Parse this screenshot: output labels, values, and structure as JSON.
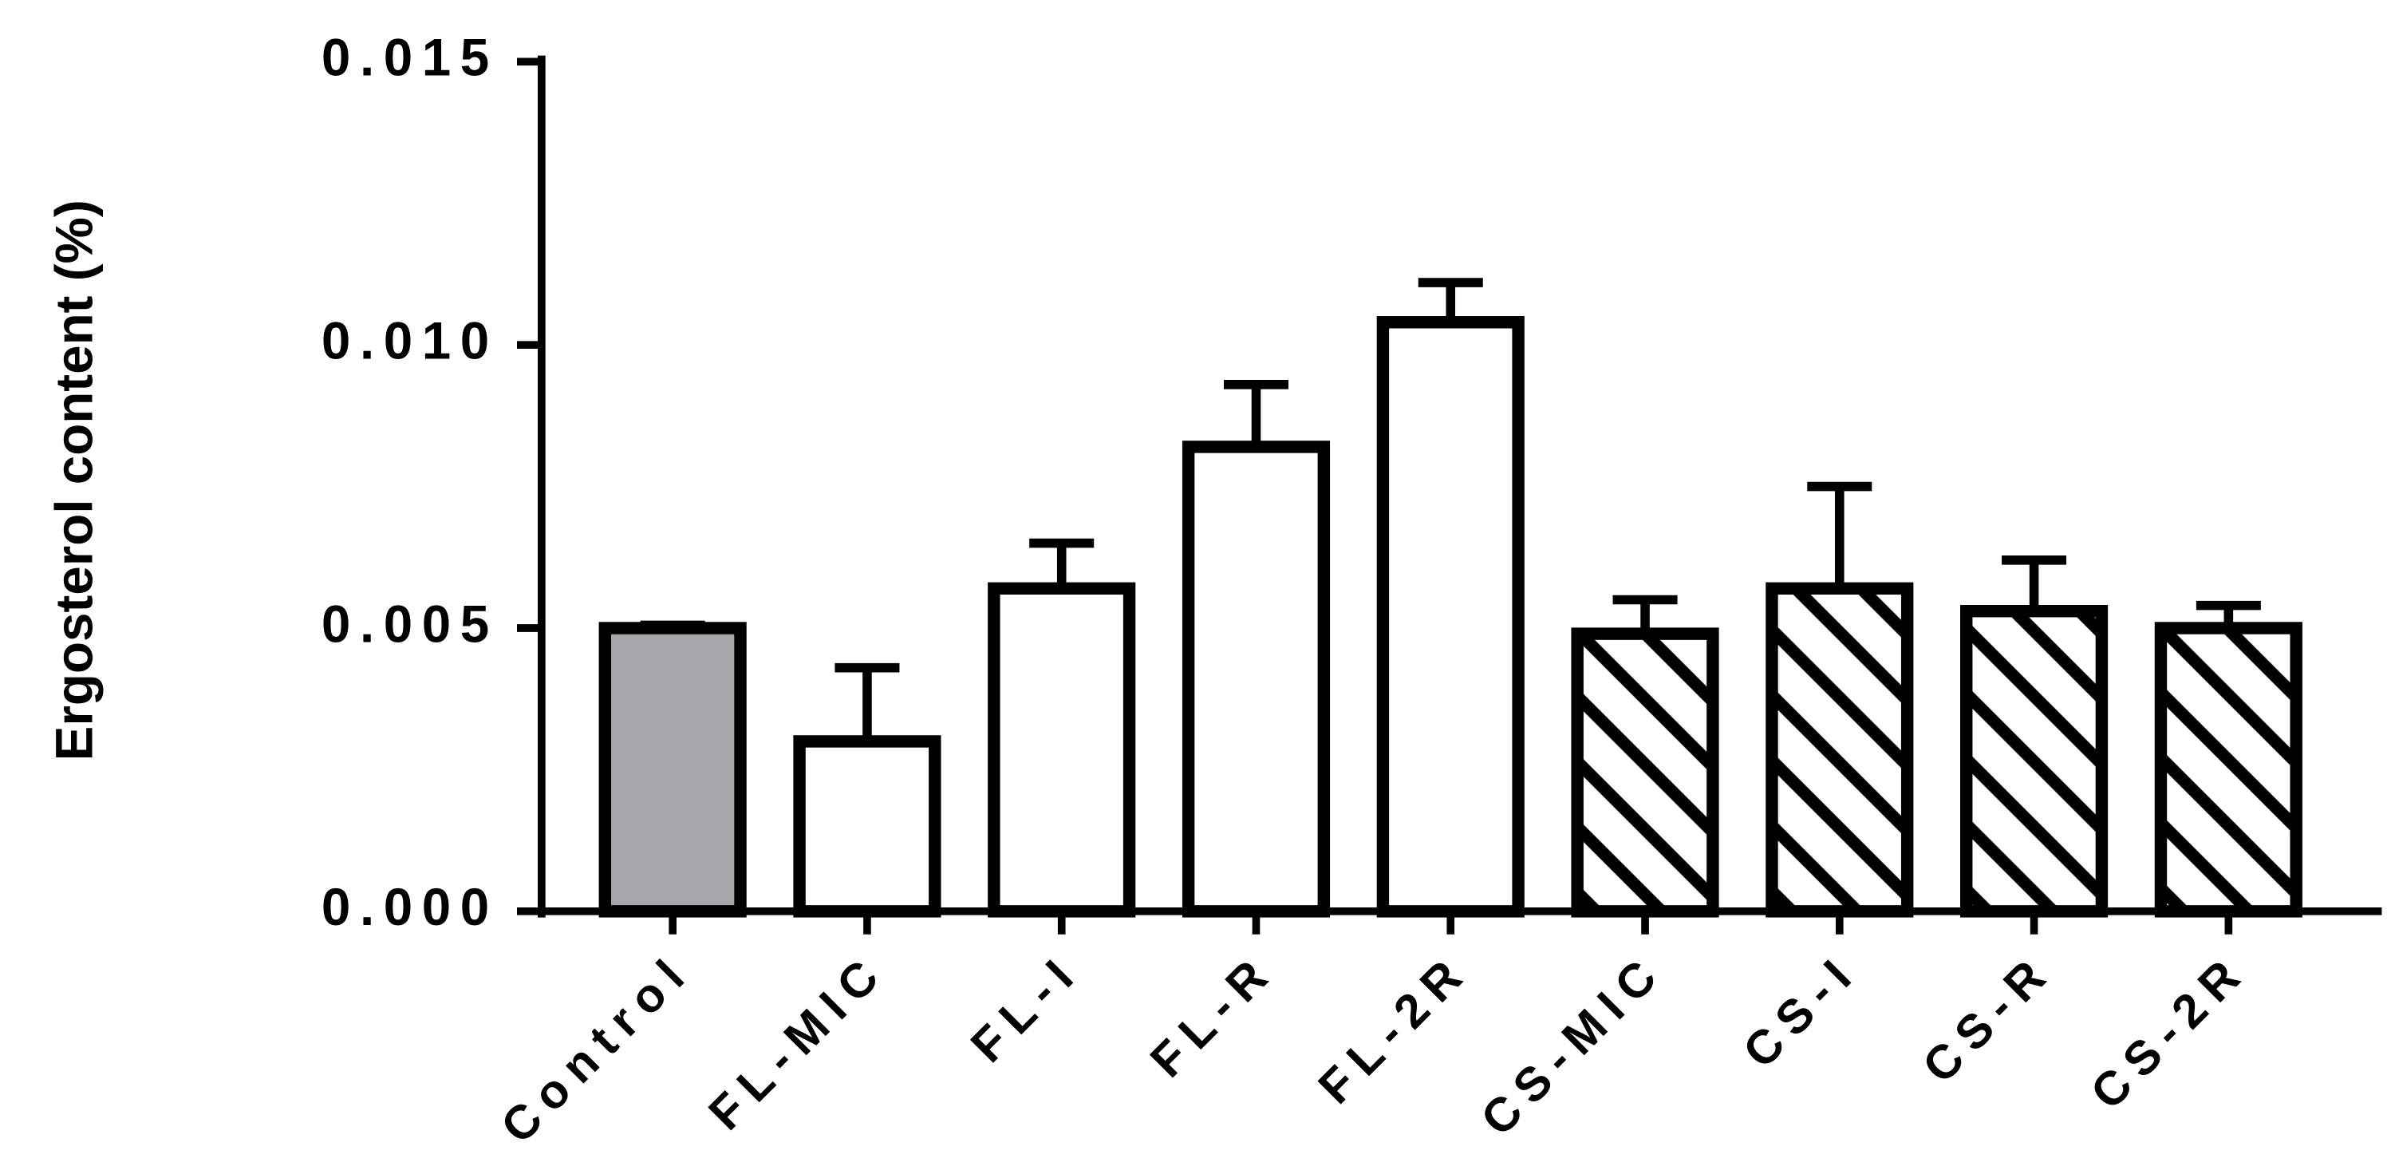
{
  "chart_data": {
    "type": "bar",
    "y_label": "Ergosterol content (%)",
    "categories": [
      "Control",
      "FL-MIC",
      "FL-I",
      "FL-R",
      "FL-2R",
      "CS-MIC",
      "CS-I",
      "CS-R",
      "CS-2R"
    ],
    "values": [
      0.005,
      0.003,
      0.0057,
      0.0082,
      0.0104,
      0.0049,
      0.0057,
      0.0053,
      0.005
    ],
    "errors": [
      5e-05,
      0.0013,
      0.0008,
      0.0011,
      0.0007,
      0.0006,
      0.0018,
      0.0009,
      0.0004
    ],
    "colors": [
      "#a6a6a8",
      "#ffffff",
      "#ffffff",
      "#ffffff",
      "#ffffff",
      "#ffffff",
      "#ffffff",
      "#ffffff",
      "#ffffff"
    ],
    "hatched": [
      false,
      false,
      false,
      false,
      false,
      true,
      true,
      true,
      true
    ],
    "ylim": [
      0,
      0.015
    ],
    "yticks": [
      {
        "value": 0,
        "label": "0.000"
      },
      {
        "value": 0.005,
        "label": "0.005"
      },
      {
        "value": 0.01,
        "label": "0.010"
      },
      {
        "value": 0.015,
        "label": "0.015"
      }
    ],
    "grid": false
  }
}
